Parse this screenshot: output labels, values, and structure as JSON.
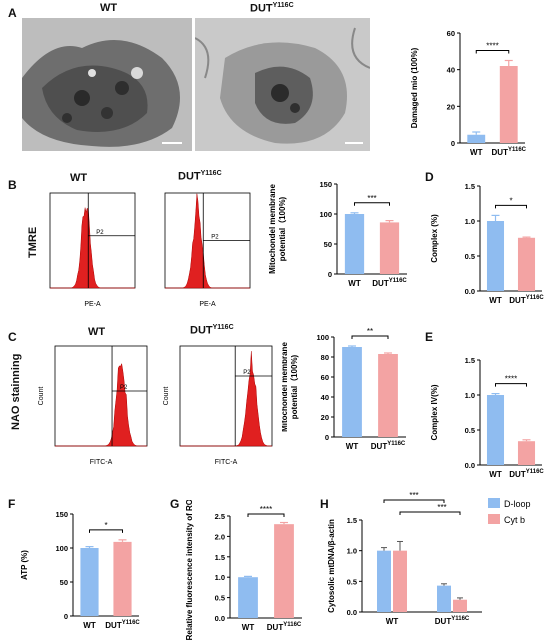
{
  "labels": {
    "panelA": "A",
    "panelB": "B",
    "panelC": "C",
    "panelD": "D",
    "panelE": "E",
    "panelF": "F",
    "panelG": "G",
    "panelH": "H",
    "wt": "WT",
    "dut": "DUT",
    "dut_sup": "Y116C",
    "tmre": "TMRE",
    "nao": "NAO stainning",
    "gate": "P2",
    "flowB_x": "PE-A",
    "flowC_x": "FITC-A",
    "flowC_y": "Count"
  },
  "chart_data": [
    {
      "id": "A",
      "type": "bar",
      "categories": [
        "WT",
        "DUT Y116C"
      ],
      "values": [
        4.5,
        42
      ],
      "errors": [
        1.5,
        3
      ],
      "ylabel": "Damaged mio (100%)",
      "ylim": [
        0,
        60
      ],
      "yticks": [
        "0",
        "20",
        "40",
        "60"
      ],
      "significance": "****",
      "colors": [
        "#8fbcf0",
        "#f3a3a3"
      ]
    },
    {
      "id": "B",
      "type": "bar",
      "categories": [
        "WT",
        "DUT Y116C"
      ],
      "values": [
        100,
        86
      ],
      "errors": [
        2,
        3
      ],
      "ylabel": "Mitochondel membrane potential（100%)",
      "ylim": [
        0,
        150
      ],
      "yticks": [
        "0",
        "50",
        "100",
        "150"
      ],
      "significance": "***",
      "colors": [
        "#8fbcf0",
        "#f3a3a3"
      ]
    },
    {
      "id": "C",
      "type": "bar",
      "categories": [
        "WT",
        "DUT Y116C"
      ],
      "values": [
        90,
        83
      ],
      "errors": [
        1,
        1
      ],
      "ylabel": "Mitochondel membrane potential（100%)",
      "ylim": [
        0,
        100
      ],
      "yticks": [
        "0",
        "20",
        "40",
        "60",
        "80",
        "100"
      ],
      "significance": "**",
      "colors": [
        "#8fbcf0",
        "#f3a3a3"
      ]
    },
    {
      "id": "D",
      "type": "bar",
      "categories": [
        "WT",
        "DUT Y116C"
      ],
      "values": [
        1.0,
        0.76
      ],
      "errors": [
        0.08,
        0.01
      ],
      "ylabel": "Complex (%)",
      "ylim": [
        0,
        1.5
      ],
      "yticks": [
        "0.0",
        "0.5",
        "1.0",
        "1.5"
      ],
      "significance": "*",
      "colors": [
        "#8fbcf0",
        "#f3a3a3"
      ]
    },
    {
      "id": "E",
      "type": "bar",
      "categories": [
        "WT",
        "DUT Y116C"
      ],
      "values": [
        1.0,
        0.34
      ],
      "errors": [
        0.02,
        0.02
      ],
      "ylabel": "Complex IV(%)",
      "ylim": [
        0,
        1.5
      ],
      "yticks": [
        "0.0",
        "0.5",
        "1.0",
        "1.5"
      ],
      "significance": "****",
      "colors": [
        "#8fbcf0",
        "#f3a3a3"
      ]
    },
    {
      "id": "F",
      "type": "bar",
      "categories": [
        "WT",
        "DUT Y116C"
      ],
      "values": [
        100,
        109
      ],
      "errors": [
        2,
        3
      ],
      "ylabel": "ATP (%)",
      "ylim": [
        0,
        150
      ],
      "yticks": [
        "0",
        "50",
        "100",
        "150"
      ],
      "significance": "*",
      "colors": [
        "#8fbcf0",
        "#f3a3a3"
      ]
    },
    {
      "id": "G",
      "type": "bar",
      "categories": [
        "WT",
        "DUT Y116C"
      ],
      "values": [
        1.0,
        2.3
      ],
      "errors": [
        0.02,
        0.04
      ],
      "ylabel": "Relative fluorescence intensity of ROS",
      "ylim": [
        0,
        2.5
      ],
      "yticks": [
        "0.0",
        "0.5",
        "1.0",
        "1.5",
        "2.0",
        "2.5"
      ],
      "significance": "****",
      "colors": [
        "#8fbcf0",
        "#f3a3a3"
      ]
    },
    {
      "id": "H",
      "type": "bar",
      "categories": [
        "WT",
        "DUT Y116C"
      ],
      "series": [
        {
          "name": "D-loop",
          "values": [
            1.0,
            0.43
          ],
          "errors": [
            0.05,
            0.03
          ],
          "color": "#8fbcf0"
        },
        {
          "name": "Cyt b",
          "values": [
            1.0,
            0.2
          ],
          "errors": [
            0.15,
            0.03
          ],
          "color": "#f3a3a3"
        }
      ],
      "ylabel": "Cytosolic mtDNA/β-actin",
      "ylim": [
        0,
        1.5
      ],
      "yticks": [
        "0.0",
        "0.5",
        "1.0",
        "1.5"
      ],
      "significance": [
        "***",
        "***"
      ],
      "legend": "top-right"
    }
  ]
}
